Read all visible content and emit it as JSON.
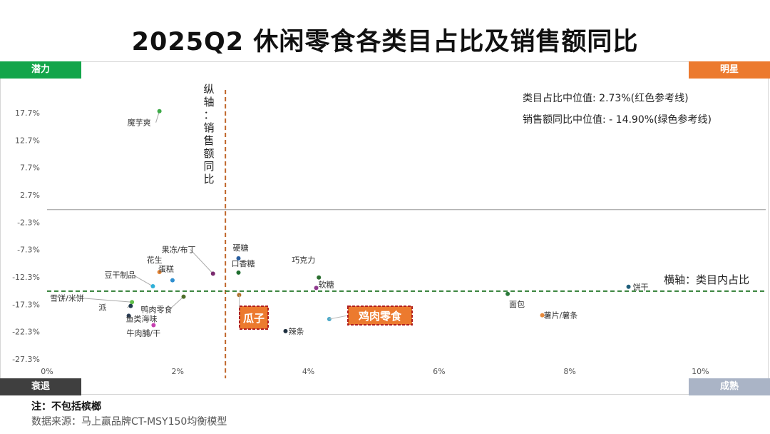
{
  "title": "2025Q2 休闲零食各类目占比及销售额同比",
  "quadrants": {
    "top_left": "潜力",
    "top_right": "明星",
    "bottom_left": "衰退",
    "bottom_right": "成熟"
  },
  "median_notes": [
    "类目占比中位值:   2.73%(红色参考线)",
    "销售额同比中位值:  - 14.90%(绿色参考线)"
  ],
  "vertical_axis_label": "纵轴：销售额同比",
  "horizontal_axis_label": "横轴：类目内占比",
  "note": "注：不包括槟榔",
  "source": "数据来源：马上赢品牌CT-MSY150均衡模型",
  "chart_data": {
    "type": "scatter",
    "title": "2025Q2 休闲零食各类目占比及销售额同比",
    "x_ticks": [
      "0%",
      "2%",
      "4%",
      "6%",
      "8%",
      "10%"
    ],
    "y_ticks": [
      "17.7%",
      "12.7%",
      "7.7%",
      "2.7%",
      "-2.3%",
      "-7.3%",
      "-12.3%",
      "-17.3%",
      "-22.3%",
      "-27.3%"
    ],
    "xlim": [
      0,
      11
    ],
    "ylim": [
      -27.3,
      17.7
    ],
    "reference_lines": {
      "x_median": 2.73,
      "y_median": -14.9,
      "x_median_color": "#c0662a",
      "y_median_color": "#2e7d32",
      "zero_line": 0
    },
    "points": [
      {
        "name": "魔芋爽",
        "x": 1.72,
        "y": 18.0,
        "color": "#3daa48"
      },
      {
        "name": "果冻/布丁",
        "x": 2.54,
        "y": -11.7,
        "color": "#7a2a6e"
      },
      {
        "name": "花生",
        "x": 1.72,
        "y": -11.4,
        "color": "#e8893a"
      },
      {
        "name": "蛋糕",
        "x": 1.92,
        "y": -12.9,
        "color": "#2f8fcf"
      },
      {
        "name": "豆干制品",
        "x": 1.62,
        "y": -14.0,
        "color": "#2fb0d8"
      },
      {
        "name": "鸭肉零食",
        "x": 2.09,
        "y": -15.9,
        "color": "#4e6e2a"
      },
      {
        "name": "雪饼/米饼",
        "x": 1.3,
        "y": -16.9,
        "color": "#5fbf49"
      },
      {
        "name": "派",
        "x": 1.28,
        "y": -17.6,
        "color": "#1f3a4e"
      },
      {
        "name": "鱼类海味",
        "x": 1.25,
        "y": -19.4,
        "color": "#2a3f5a"
      },
      {
        "name": "牛肉脯/干",
        "x": 1.63,
        "y": -21.1,
        "color": "#c63fb0"
      },
      {
        "name": "硬糖",
        "x": 2.93,
        "y": -8.9,
        "color": "#2a5fa0"
      },
      {
        "name": "口香糖",
        "x": 2.93,
        "y": -11.5,
        "color": "#1f6e2f"
      },
      {
        "name": "巧克力",
        "x": 4.16,
        "y": -12.4,
        "color": "#2a6e2f"
      },
      {
        "name": "软糖",
        "x": 4.12,
        "y": -14.3,
        "color": "#8f3a8e"
      },
      {
        "name": "瓜子",
        "x": 2.94,
        "y": -15.6,
        "color": "#b0702a"
      },
      {
        "name": "鸡肉零食",
        "x": 4.32,
        "y": -20.0,
        "color": "#49a8c8"
      },
      {
        "name": "辣条",
        "x": 3.65,
        "y": -22.2,
        "color": "#1f3040"
      },
      {
        "name": "面包",
        "x": 7.05,
        "y": -15.4,
        "color": "#2a7a3a"
      },
      {
        "name": "薯片/薯条",
        "x": 7.58,
        "y": -19.3,
        "color": "#e8893a"
      },
      {
        "name": "饼干",
        "x": 8.9,
        "y": -14.1,
        "color": "#1f5e7a"
      }
    ],
    "callouts": [
      "瓜子",
      "鸡肉零食"
    ]
  }
}
